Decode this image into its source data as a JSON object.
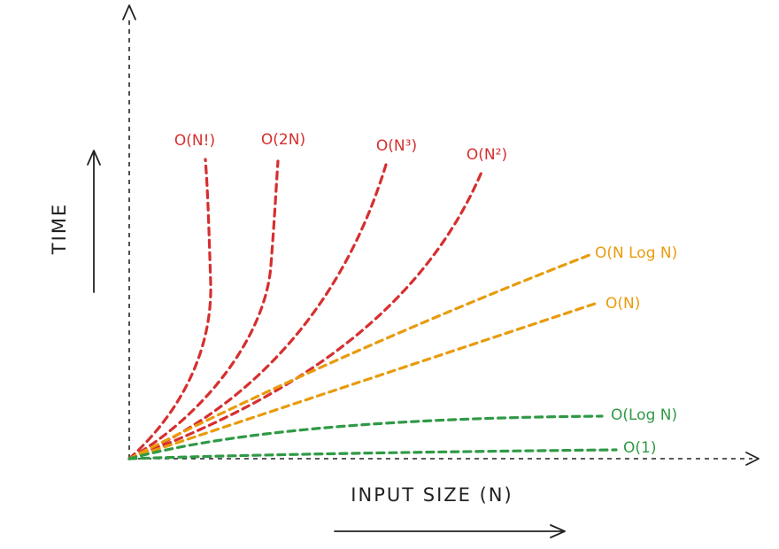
{
  "axes": {
    "y_label": "TIME",
    "x_label": "INPUT SIZE (N)"
  },
  "colors": {
    "axis": "#222222",
    "red": "#d62f2f",
    "orange": "#e89b0c",
    "green": "#2f9a45"
  },
  "curves": [
    {
      "id": "factorial",
      "label": "O(N!)",
      "color": "red"
    },
    {
      "id": "exponential",
      "label": "O(2N)",
      "color": "red"
    },
    {
      "id": "cubic",
      "label": "O(N³)",
      "color": "red"
    },
    {
      "id": "quadratic",
      "label": "O(N²)",
      "color": "red"
    },
    {
      "id": "nlogn",
      "label": "O(N Log N)",
      "color": "orange"
    },
    {
      "id": "linear",
      "label": "O(N)",
      "color": "orange"
    },
    {
      "id": "log",
      "label": "O(Log N)",
      "color": "green"
    },
    {
      "id": "constant",
      "label": "O(1)",
      "color": "green"
    }
  ]
}
